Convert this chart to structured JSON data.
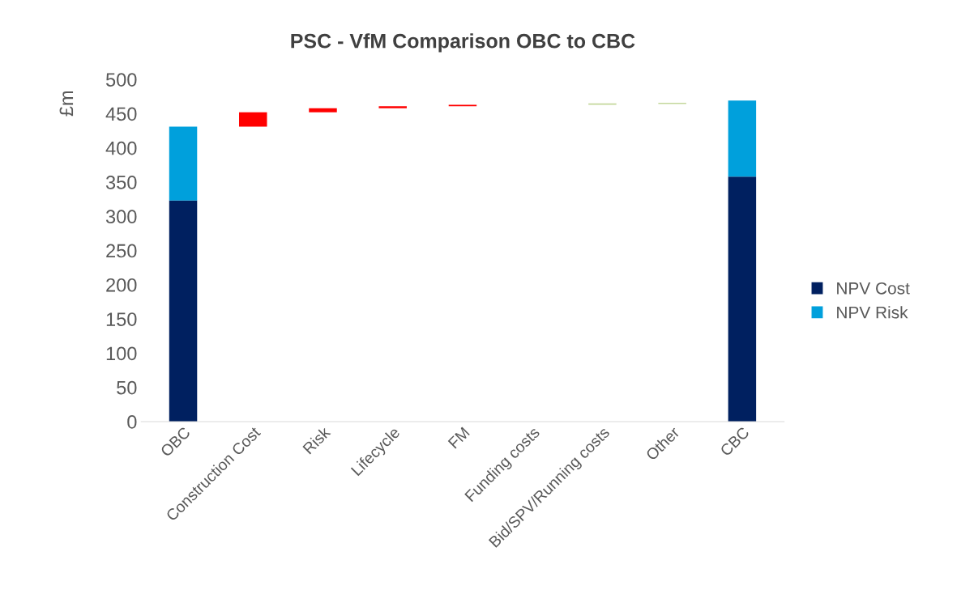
{
  "chart_data": {
    "type": "bar",
    "stacked": true,
    "title": "PSC - VfM Comparison OBC to CBC",
    "ylabel": "£m",
    "categories": [
      "OBC",
      "Construction Cost",
      "Risk",
      "Lifecycle",
      "FM",
      "Funding costs",
      "Bid/SPV/Running costs",
      "Other",
      "CBC"
    ],
    "series": [
      {
        "name": "NPV Cost",
        "color": "#002060",
        "values": [
          323,
          null,
          null,
          null,
          null,
          null,
          null,
          null,
          358
        ]
      },
      {
        "name": "NPV Risk",
        "color": "#00a0dc",
        "values": [
          108,
          null,
          null,
          null,
          null,
          null,
          null,
          null,
          111
        ]
      },
      {
        "values": [
          null,
          21,
          6,
          3,
          2,
          null,
          2,
          2,
          null
        ],
        "base": [
          null,
          431,
          452,
          458,
          461,
          null,
          463,
          464,
          null
        ],
        "colors": [
          null,
          "#ff0000",
          "#ff0000",
          "#ff0000",
          "#ff0000",
          null,
          "#c4d79b",
          "#c4d79b",
          null
        ]
      }
    ],
    "ylim": [
      0,
      500
    ],
    "yticks": [
      0,
      50,
      100,
      150,
      200,
      250,
      300,
      350,
      400,
      450,
      500
    ],
    "grid": false,
    "legend": "right"
  }
}
